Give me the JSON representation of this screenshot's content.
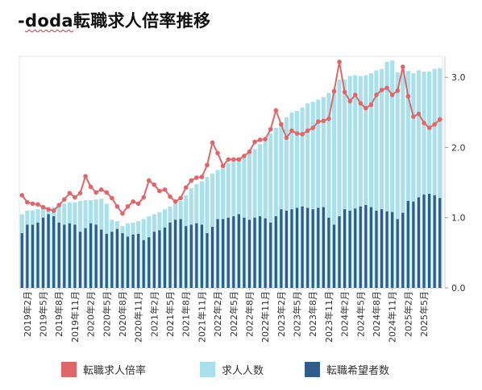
{
  "title": {
    "prefix": "-",
    "brand": "doda",
    "rest": "転職求人倍率推移"
  },
  "colors": {
    "ratio": "#e0666a",
    "jobs": "#a8e0ec",
    "seekers": "#2e5d8a"
  },
  "chart_data": {
    "type": "bar",
    "right_axis": {
      "ticks": [
        0.0,
        1.0,
        2.0,
        3.0
      ],
      "tick_labels": [
        "0.0",
        "1.0",
        "2.0",
        "3.0"
      ],
      "ylim": [
        0,
        3.3
      ]
    },
    "xtick_labels": [
      "2019年2月",
      "2019年5月",
      "2019年8月",
      "2019年11月",
      "2020年2月",
      "2020年5月",
      "2020年8月",
      "2020年11月",
      "2021年2月",
      "2021年5月",
      "2021年8月",
      "2021年11月",
      "2022年2月",
      "2022年5月",
      "2022年8月",
      "2022年11月",
      "2023年2月",
      "2023年5月",
      "2023年8月",
      "2023年11月",
      "2024年2月",
      "2024年5月",
      "2024年8月",
      "2024年11月",
      "2025年2月",
      "2025年5月"
    ],
    "xtick_start_month": "2019-02",
    "months_start": "2019-01",
    "legend": [
      "転職求人倍率",
      "求人人数",
      "転職希望者数"
    ],
    "series": [
      {
        "name": "転職求人倍率",
        "kind": "line",
        "values": [
          1.32,
          1.22,
          1.2,
          1.19,
          1.15,
          1.12,
          1.1,
          1.18,
          1.26,
          1.35,
          1.29,
          1.35,
          1.59,
          1.44,
          1.36,
          1.4,
          1.36,
          1.28,
          1.16,
          1.06,
          1.16,
          1.23,
          1.2,
          1.29,
          1.53,
          1.47,
          1.38,
          1.4,
          1.3,
          1.23,
          1.28,
          1.43,
          1.53,
          1.57,
          1.58,
          1.75,
          2.07,
          1.92,
          1.74,
          1.83,
          1.83,
          1.83,
          1.88,
          1.94,
          2.08,
          2.11,
          2.12,
          2.26,
          2.53,
          2.33,
          2.14,
          2.24,
          2.2,
          2.19,
          2.24,
          2.28,
          2.37,
          2.38,
          2.41,
          2.8,
          3.22,
          2.79,
          2.66,
          2.75,
          2.63,
          2.56,
          2.61,
          2.75,
          2.82,
          2.85,
          2.75,
          2.81,
          3.15,
          2.73,
          2.44,
          2.48,
          2.35,
          2.28,
          2.33,
          2.4
        ]
      },
      {
        "name": "求人人数",
        "kind": "bar",
        "values": [
          1.05,
          1.1,
          1.1,
          1.12,
          1.15,
          1.1,
          1.15,
          1.18,
          1.2,
          1.22,
          1.22,
          1.24,
          1.25,
          1.25,
          1.26,
          1.27,
          1.2,
          0.97,
          0.95,
          0.88,
          0.92,
          0.93,
          0.95,
          0.98,
          1.02,
          1.05,
          1.08,
          1.12,
          1.16,
          1.2,
          1.24,
          1.32,
          1.42,
          1.48,
          1.52,
          1.58,
          1.63,
          1.68,
          1.72,
          1.78,
          1.82,
          1.84,
          1.88,
          1.93,
          1.98,
          2.05,
          2.13,
          2.2,
          2.28,
          2.36,
          2.43,
          2.5,
          2.52,
          2.57,
          2.63,
          2.65,
          2.68,
          2.72,
          2.78,
          2.83,
          2.97,
          2.97,
          3.02,
          3.03,
          3.02,
          3.03,
          3.06,
          3.1,
          3.12,
          3.22,
          3.24,
          3.07,
          3.1,
          3.09,
          3.06,
          3.1,
          3.08,
          3.08,
          3.12,
          3.13
        ]
      },
      {
        "name": "転職希望者数",
        "kind": "bar",
        "values": [
          0.78,
          0.9,
          0.9,
          0.93,
          1.0,
          1.05,
          1.02,
          0.93,
          0.9,
          0.92,
          0.9,
          0.8,
          0.85,
          0.92,
          0.9,
          0.83,
          0.77,
          0.8,
          0.84,
          0.78,
          0.73,
          0.76,
          0.77,
          0.68,
          0.72,
          0.8,
          0.82,
          0.86,
          0.93,
          0.97,
          0.98,
          0.88,
          0.9,
          0.92,
          0.9,
          0.78,
          0.87,
          0.98,
          0.98,
          1.0,
          1.02,
          1.05,
          1.0,
          0.97,
          1.0,
          1.02,
          0.99,
          0.93,
          1.02,
          1.12,
          1.1,
          1.12,
          1.14,
          1.16,
          1.14,
          1.12,
          1.14,
          1.15,
          1.0,
          0.9,
          1.02,
          1.12,
          1.1,
          1.13,
          1.16,
          1.18,
          1.15,
          1.1,
          1.12,
          1.09,
          1.08,
          0.98,
          1.07,
          1.24,
          1.23,
          1.29,
          1.33,
          1.34,
          1.32,
          1.28
        ]
      }
    ]
  }
}
